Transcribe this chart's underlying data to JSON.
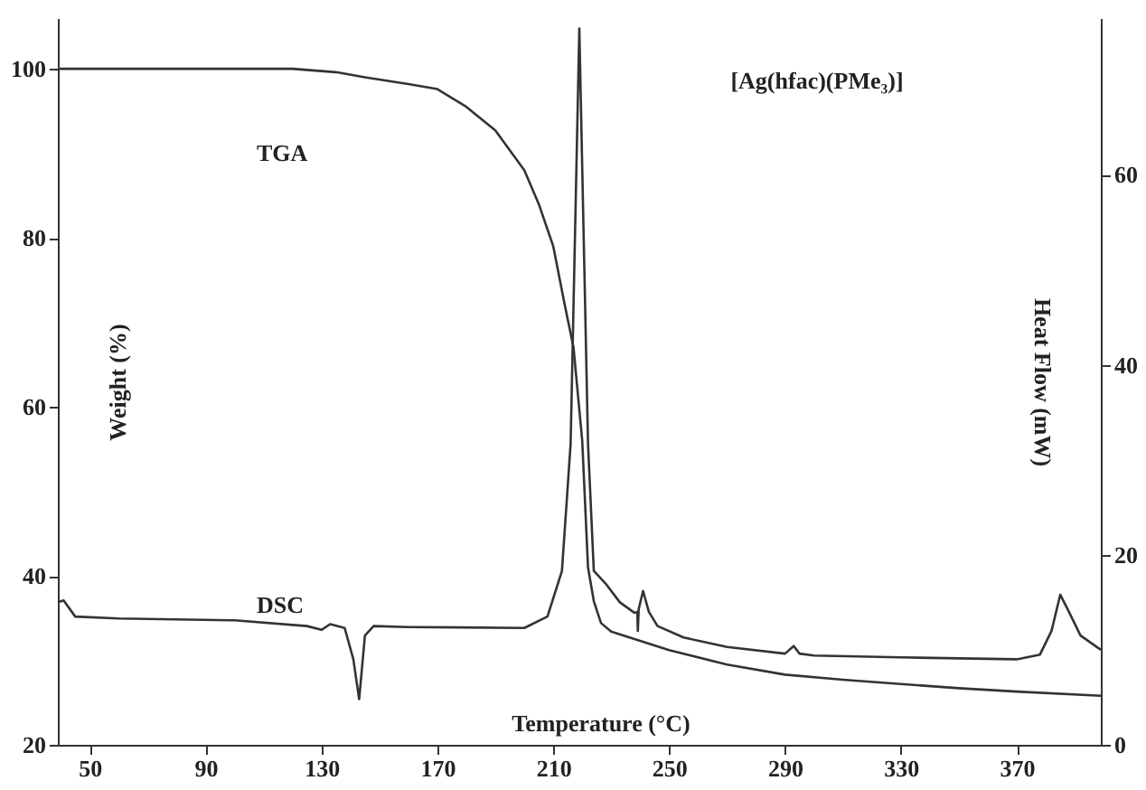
{
  "chart_data": {
    "type": "line",
    "xlabel": "Temperature (°C)",
    "ylabel": "Weight (%)",
    "y2label": "Heat Flow (mW)",
    "annotations": [
      "[Ag(hfac)(PMe₃)]"
    ],
    "xlim": [
      39,
      399
    ],
    "xticks": [
      50,
      90,
      130,
      170,
      210,
      250,
      290,
      330,
      370
    ],
    "ylim": [
      20,
      106
    ],
    "yticks": [
      20,
      40,
      60,
      80,
      100
    ],
    "y2lim": [
      0,
      76.5
    ],
    "y2ticks": [
      0,
      20,
      40,
      60
    ],
    "grid": false,
    "marker": "none",
    "line_style": "solid",
    "series": [
      {
        "name": "TGA",
        "color": "#333333",
        "x": [
          39,
          120,
          135,
          145,
          160,
          170,
          180,
          190,
          200,
          205,
          210,
          214,
          217,
          220,
          222,
          224,
          226.5,
          230,
          240,
          250,
          270,
          290,
          310,
          330,
          350,
          370,
          399
        ],
        "values": [
          100,
          100,
          99.6,
          99,
          98.2,
          97.6,
          95.5,
          92.7,
          88,
          84,
          79,
          72,
          67,
          56,
          41,
          37,
          34.4,
          33.4,
          32.3,
          31.2,
          29.5,
          28.3,
          27.7,
          27.2,
          26.7,
          26.3,
          25.8
        ]
      },
      {
        "name": "DSC",
        "color": "#333333",
        "axis": "y2",
        "x": [
          39,
          41,
          45,
          60,
          100,
          125,
          130,
          133,
          138,
          141,
          143,
          145,
          148,
          160,
          200,
          208,
          213,
          216,
          219,
          222,
          224,
          228,
          233,
          238,
          239,
          239.2,
          239.5,
          241,
          243,
          246,
          255,
          270,
          290,
          293,
          295,
          300,
          330,
          370,
          378,
          382,
          385,
          388,
          392,
          399
        ],
        "values": [
          15,
          15.2,
          13.5,
          13.3,
          13.1,
          12.5,
          12.1,
          12.7,
          12.3,
          9,
          4.8,
          11.5,
          12.5,
          12.4,
          12.3,
          13.5,
          18.3,
          31.7,
          75.4,
          31.7,
          18.3,
          17,
          15,
          13.9,
          14,
          12,
          14.3,
          16.2,
          14,
          12.5,
          11.3,
          10.3,
          9.6,
          10.4,
          9.6,
          9.4,
          9.2,
          9.0,
          9.5,
          12,
          15.8,
          14,
          11.5,
          10
        ]
      }
    ]
  }
}
